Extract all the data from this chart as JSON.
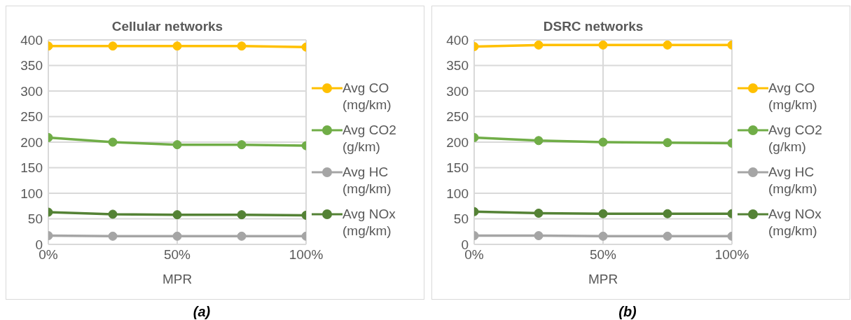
{
  "chart_data": [
    {
      "type": "line",
      "title": "Cellular networks",
      "xlabel": "MPR",
      "x": [
        0,
        25,
        50,
        75,
        100
      ],
      "xlim": [
        0,
        100
      ],
      "xticks": [
        {
          "value": 0,
          "label": "0%"
        },
        {
          "value": 50,
          "label": "50%"
        },
        {
          "value": 100,
          "label": "100%"
        }
      ],
      "ylim": [
        0,
        400
      ],
      "yticks": [
        0,
        50,
        100,
        150,
        200,
        250,
        300,
        350,
        400
      ],
      "grid": true,
      "legend": "right",
      "marker": "circle",
      "annotations": [
        "(a)"
      ],
      "series": [
        {
          "name": "Avg HC (mg/km)",
          "color": "#a5a5a5",
          "values": [
            17,
            16,
            16,
            16,
            16
          ]
        },
        {
          "name": "Avg CO (mg/km)",
          "color": "#ffc000",
          "values": [
            388,
            388,
            388,
            388,
            386
          ]
        },
        {
          "name": "Avg NOx (mg/km)",
          "color": "#548235",
          "values": [
            63,
            59,
            58,
            58,
            57
          ]
        },
        {
          "name": "Avg CO2 (g/km)",
          "color": "#70ad47",
          "values": [
            209,
            200,
            195,
            195,
            193
          ]
        }
      ]
    },
    {
      "type": "line",
      "title": "DSRC networks",
      "xlabel": "MPR",
      "x": [
        0,
        25,
        50,
        75,
        100
      ],
      "xlim": [
        0,
        100
      ],
      "xticks": [
        {
          "value": 0,
          "label": "0%"
        },
        {
          "value": 50,
          "label": "50%"
        },
        {
          "value": 100,
          "label": "100%"
        }
      ],
      "ylim": [
        0,
        400
      ],
      "yticks": [
        0,
        50,
        100,
        150,
        200,
        250,
        300,
        350,
        400
      ],
      "grid": true,
      "legend": "right",
      "marker": "circle",
      "annotations": [
        "(b)"
      ],
      "series": [
        {
          "name": "Avg HC (mg/km)",
          "color": "#a5a5a5",
          "values": [
            17,
            17,
            16,
            16,
            16
          ]
        },
        {
          "name": "Avg CO (mg/km)",
          "color": "#ffc000",
          "values": [
            387,
            390,
            390,
            390,
            390
          ]
        },
        {
          "name": "Avg NOx (mg/km)",
          "color": "#548235",
          "values": [
            64,
            61,
            60,
            60,
            60
          ]
        },
        {
          "name": "Avg CO2 (g/km)",
          "color": "#70ad47",
          "values": [
            209,
            203,
            200,
            199,
            198
          ]
        }
      ]
    }
  ]
}
